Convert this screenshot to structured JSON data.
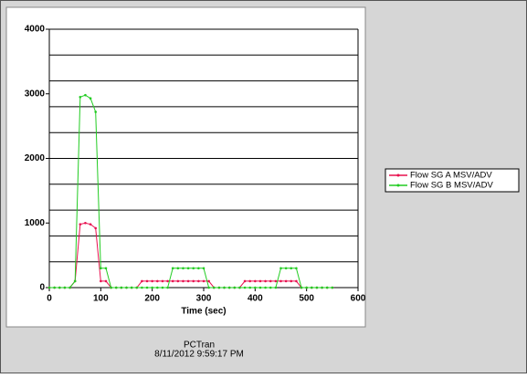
{
  "chart_data": {
    "type": "line",
    "x_label": "Time (sec)",
    "x": [
      0,
      10,
      20,
      30,
      40,
      50,
      60,
      70,
      80,
      90,
      100,
      110,
      120,
      130,
      140,
      150,
      160,
      170,
      180,
      190,
      200,
      210,
      220,
      230,
      240,
      250,
      260,
      270,
      280,
      290,
      300,
      310,
      320,
      330,
      340,
      350,
      360,
      370,
      380,
      390,
      400,
      410,
      420,
      430,
      440,
      450,
      460,
      470,
      480,
      490,
      500,
      510,
      520,
      530,
      540,
      550
    ],
    "series": [
      {
        "name": "Flow SG A MSV/ADV",
        "color": "#e8104f",
        "values": [
          0,
          0,
          0,
          0,
          0,
          100,
          980,
          1000,
          980,
          920,
          100,
          100,
          0,
          0,
          0,
          0,
          0,
          0,
          100,
          100,
          100,
          100,
          100,
          100,
          100,
          100,
          100,
          100,
          100,
          100,
          100,
          100,
          0,
          0,
          0,
          0,
          0,
          0,
          100,
          100,
          100,
          100,
          100,
          100,
          100,
          100,
          100,
          100,
          100,
          0,
          0,
          0,
          0,
          0,
          0,
          0
        ]
      },
      {
        "name": "Flow SG B MSV/ADV",
        "color": "#22cc22",
        "values": [
          0,
          0,
          0,
          0,
          0,
          100,
          2950,
          2980,
          2930,
          2720,
          300,
          300,
          0,
          0,
          0,
          0,
          0,
          0,
          0,
          0,
          0,
          0,
          0,
          0,
          300,
          300,
          300,
          300,
          300,
          300,
          300,
          0,
          0,
          0,
          0,
          0,
          0,
          0,
          0,
          0,
          0,
          0,
          0,
          0,
          0,
          300,
          300,
          300,
          300,
          0,
          0,
          0,
          0,
          0,
          0,
          0
        ]
      }
    ],
    "xlim": [
      0,
      600
    ],
    "xticks": [
      0,
      100,
      200,
      300,
      400,
      500,
      600
    ],
    "ylim": [
      0,
      4000
    ],
    "yticks": [
      0,
      1000,
      2000,
      3000,
      4000
    ],
    "ygrid": [
      0,
      400,
      800,
      1200,
      1600,
      2000,
      2400,
      2800,
      3200,
      3600,
      4000
    ],
    "legend": "right",
    "footer": [
      "PCTran",
      "8/11/2012 9:59:17 PM"
    ]
  }
}
